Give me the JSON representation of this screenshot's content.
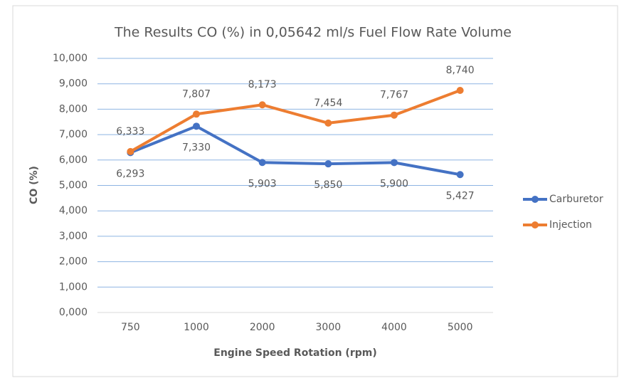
{
  "chart_data": {
    "type": "line",
    "title": "The Results CO (%) in 0,05642 ml/s Fuel Flow Rate Volume",
    "x_label": "Engine Speed Rotation (rpm)",
    "y_label": "CO (%)",
    "categories": [
      "750",
      "1000",
      "2000",
      "3000",
      "4000",
      "5000"
    ],
    "series": [
      {
        "name": "Carburetor",
        "color": "#4472c4",
        "values": [
          6.293,
          7.33,
          5.903,
          5.85,
          5.9,
          5.427
        ],
        "value_labels": [
          "6,293",
          "7,330",
          "5,903",
          "5,850",
          "5,900",
          "5,427"
        ]
      },
      {
        "name": "Injection",
        "color": "#ed7d31",
        "values": [
          6.333,
          7.807,
          8.173,
          7.454,
          7.767,
          8.74
        ],
        "value_labels": [
          "6,333",
          "7,807",
          "8,173",
          "7,454",
          "7,767",
          "8,740"
        ]
      }
    ],
    "ylim": [
      0,
      10
    ],
    "yticks": [
      {
        "value": 0,
        "label": "0,000"
      },
      {
        "value": 1,
        "label": "1,000"
      },
      {
        "value": 2,
        "label": "2,000"
      },
      {
        "value": 3,
        "label": "3,000"
      },
      {
        "value": 4,
        "label": "4,000"
      },
      {
        "value": 5,
        "label": "5,000"
      },
      {
        "value": 6,
        "label": "6,000"
      },
      {
        "value": 7,
        "label": "7,000"
      },
      {
        "value": 8,
        "label": "8,000"
      },
      {
        "value": 9,
        "label": "9,000"
      },
      {
        "value": 10,
        "label": "10,000"
      }
    ],
    "grid": true,
    "legend": "right"
  }
}
